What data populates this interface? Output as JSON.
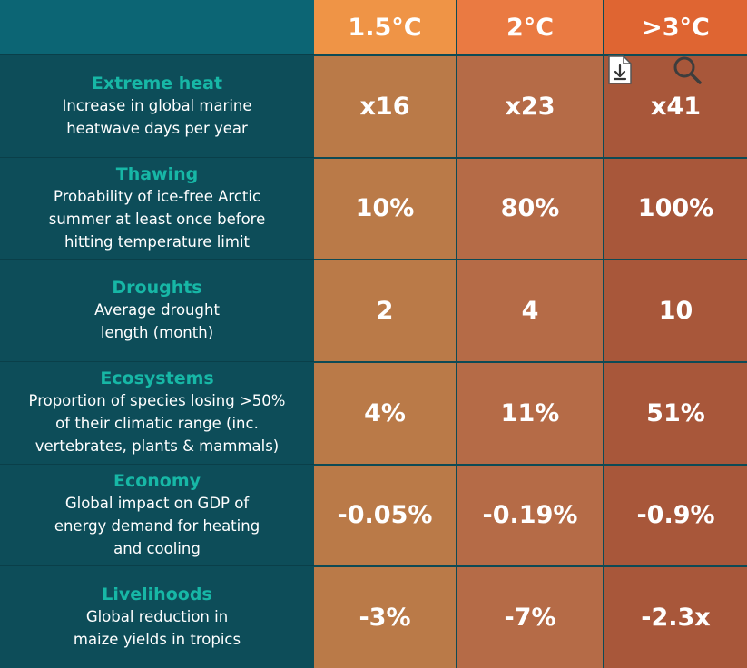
{
  "columns": [
    "1.5°C",
    "2°C",
    ">3°C"
  ],
  "rows": [
    {
      "category": "Extreme heat",
      "description": [
        "Increase in global marine",
        "heatwave days per year"
      ],
      "values": [
        "x16",
        "x23",
        "x41"
      ]
    },
    {
      "category": "Thawing",
      "description": [
        "Probability of ice-free Arctic",
        "summer at least once before",
        "hitting temperature limit"
      ],
      "values": [
        "10%",
        "80%",
        "100%"
      ]
    },
    {
      "category": "Droughts",
      "description": [
        "Average drought",
        "length (month)"
      ],
      "values": [
        "2",
        "4",
        "10"
      ]
    },
    {
      "category": "Ecosystems",
      "description": [
        "Proportion of species losing >50%",
        "of their climatic range (inc.",
        "vertebrates, plants & mammals)"
      ],
      "values": [
        "4%",
        "11%",
        "51%"
      ]
    },
    {
      "category": "Economy",
      "description": [
        "Global impact on GDP of",
        "energy demand for heating",
        "and cooling"
      ],
      "values": [
        "-0.05%",
        "-0.19%",
        "-0.9%"
      ]
    },
    {
      "category": "Livelihoods",
      "description": [
        "Global reduction in",
        "maize yields in tropics"
      ],
      "values": [
        "-3%",
        "-7%",
        "-2.3x"
      ]
    }
  ],
  "toolbar": {
    "download_icon": "download-icon",
    "zoom_icon": "magnifier-icon"
  },
  "colors": {
    "label_background": "#0d4d59",
    "category_text": "#17b7a6",
    "header_1_5": "#ef9446",
    "header_2": "#ea7a42",
    "header_3": "#df6532"
  }
}
